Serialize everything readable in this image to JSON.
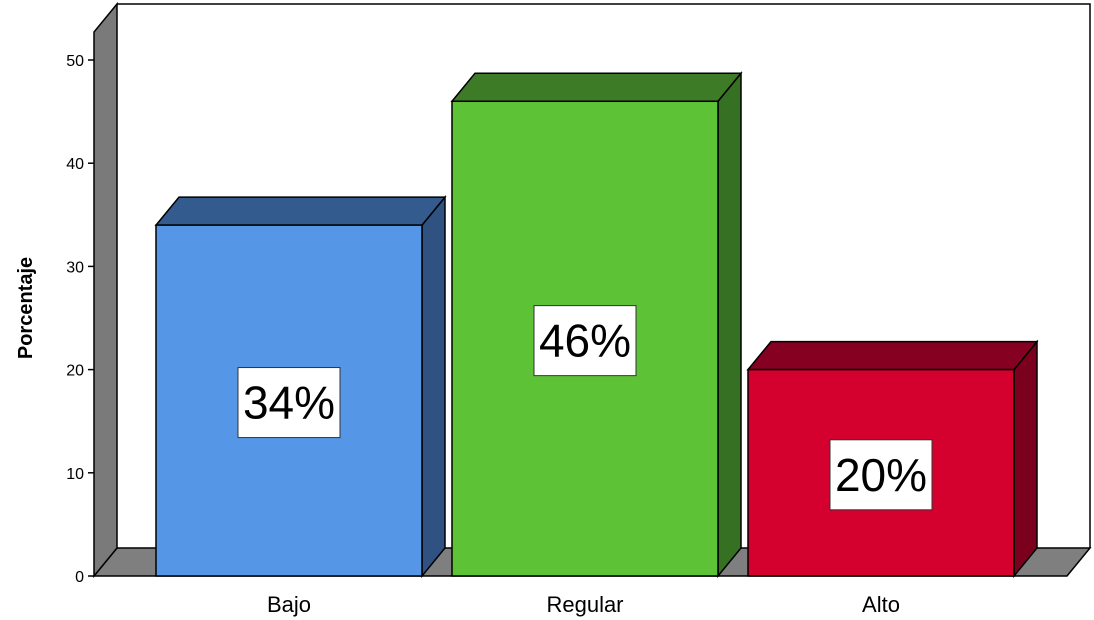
{
  "chart_data": {
    "type": "bar",
    "categories": [
      "Bajo",
      "Regular",
      "Alto"
    ],
    "values": [
      34,
      46,
      20
    ],
    "data_labels": [
      "34%",
      "46%",
      "20%"
    ],
    "ylabel": "Porcentaje",
    "xlabel": "",
    "title": "",
    "ylim": [
      0,
      50
    ],
    "yticks": [
      0,
      10,
      20,
      30,
      40,
      50
    ],
    "ytick_labels": [
      "0",
      "10",
      "20",
      "30",
      "40",
      "50"
    ],
    "grid": false,
    "style": "3d",
    "colors": {
      "bars_front": [
        "#5596e6",
        "#5ec237",
        "#d4002e"
      ],
      "bars_top": [
        "#345b8e",
        "#3e7b26",
        "#860021"
      ],
      "bars_side": [
        "#2f5283",
        "#367022",
        "#7a001d"
      ],
      "walls": "#7a7a7a",
      "floor": "#7f7f7f"
    }
  }
}
